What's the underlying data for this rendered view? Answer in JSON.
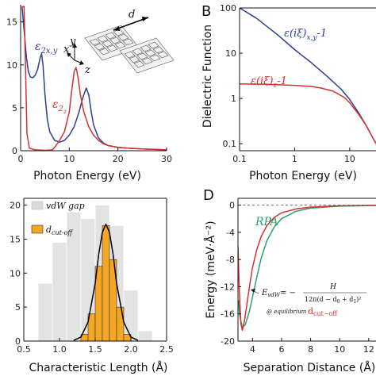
{
  "chart_data": [
    {
      "id": "A",
      "type": "line",
      "panel_label": "",
      "xlabel": "Photon Energy (eV)",
      "ylabel": "",
      "xlim": [
        0,
        30
      ],
      "ylim": [
        0,
        17
      ],
      "x_ticks": [
        0,
        10,
        20,
        30
      ],
      "y_ticks": [
        0,
        5,
        10,
        15
      ],
      "series": [
        {
          "name": "ε2x,y",
          "color": "#2e3f8f",
          "x": [
            0.3,
            0.8,
            1.2,
            1.6,
            2.0,
            2.5,
            3.0,
            3.5,
            4.0,
            4.3,
            4.6,
            5.0,
            5.5,
            6.0,
            7.0,
            8.0,
            9.0,
            10.0,
            11.0,
            12.0,
            12.8,
            13.5,
            14.0,
            14.5,
            15.0,
            16.0,
            17.0,
            18.0,
            20.0,
            22.0,
            25.0,
            28.0,
            30.0
          ],
          "y": [
            16.8,
            13.5,
            10.8,
            9.2,
            8.6,
            8.5,
            8.8,
            9.5,
            10.8,
            11.3,
            10.0,
            6.5,
            3.6,
            2.2,
            1.2,
            1.0,
            1.2,
            1.8,
            2.8,
            4.5,
            6.2,
            7.3,
            6.5,
            4.6,
            3.0,
            1.5,
            0.9,
            0.6,
            0.4,
            0.3,
            0.2,
            0.15,
            0.1
          ]
        },
        {
          "name": "ε2z",
          "color": "#d63030",
          "x": [
            0.3,
            0.7,
            1.0,
            1.3,
            1.8,
            3.0,
            5.0,
            6.5,
            7.0,
            7.5,
            8.0,
            9.0,
            10.0,
            10.5,
            11.0,
            11.4,
            11.8,
            12.3,
            13.0,
            14.0,
            15.0,
            16.0,
            17.0,
            18.0,
            20.0,
            22.0,
            25.0,
            28.0,
            30.0
          ],
          "y": [
            16.8,
            16.8,
            10.0,
            2.0,
            0.3,
            0.1,
            0.05,
            0.1,
            0.4,
            0.8,
            1.2,
            2.2,
            4.5,
            7.0,
            9.2,
            9.7,
            8.5,
            6.5,
            4.5,
            2.8,
            1.8,
            1.2,
            0.8,
            0.6,
            0.4,
            0.3,
            0.2,
            0.15,
            0.1
          ]
        }
      ]
    },
    {
      "id": "B",
      "type": "line",
      "panel_label": "B",
      "xlabel": "Photon Energy (eV)",
      "ylabel": "Dielectric Function",
      "xscale": "log",
      "yscale": "log",
      "xlim": [
        0.1,
        30
      ],
      "ylim": [
        0.07,
        100
      ],
      "x_ticks": [
        0.1,
        1,
        10
      ],
      "y_ticks": [
        0.1,
        1,
        10,
        100
      ],
      "series": [
        {
          "name": "ε(iξ)x,y-1",
          "color": "#2e3f8f",
          "x": [
            0.1,
            0.2,
            0.5,
            1,
            2,
            4,
            7,
            10,
            15,
            20,
            30
          ],
          "y": [
            100,
            60,
            25,
            12,
            6.2,
            3.0,
            1.6,
            0.95,
            0.45,
            0.25,
            0.1
          ]
        },
        {
          "name": "ε(iξ)z-1",
          "color": "#d63030",
          "x": [
            0.1,
            0.3,
            1,
            2,
            3,
            5,
            8,
            10,
            15,
            20,
            30
          ],
          "y": [
            2.1,
            2.05,
            1.95,
            1.85,
            1.7,
            1.45,
            1.05,
            0.8,
            0.42,
            0.25,
            0.1
          ]
        }
      ]
    },
    {
      "id": "C",
      "type": "bar",
      "panel_label": "",
      "xlabel": "Characteristic Length (Å)",
      "ylabel": "",
      "xlim": [
        0.5,
        2.5
      ],
      "ylim": [
        0,
        21
      ],
      "x_ticks": [
        0.5,
        1.0,
        1.5,
        2.0,
        2.5
      ],
      "y_ticks": [
        0,
        5,
        10,
        15,
        20
      ],
      "series": [
        {
          "name": "vdW gap",
          "color": "#d9d9d9",
          "bin_width": 0.2,
          "x": [
            0.8,
            1.0,
            1.2,
            1.4,
            1.6,
            1.8,
            2.0,
            2.2
          ],
          "y": [
            8.5,
            14.5,
            19.0,
            18.0,
            20.0,
            17.0,
            7.5,
            1.5
          ]
        },
        {
          "name": "dcut-off",
          "color": "#f5a623",
          "bin_width": 0.1,
          "x": [
            1.35,
            1.45,
            1.55,
            1.65,
            1.75,
            1.85,
            1.95
          ],
          "y": [
            1.0,
            4.0,
            11.0,
            17.0,
            12.0,
            5.0,
            1.0
          ]
        },
        {
          "name": "",
          "type": "line",
          "color": "#000000",
          "x": [
            1.2,
            1.3,
            1.4,
            1.5,
            1.55,
            1.6,
            1.65,
            1.7,
            1.75,
            1.8,
            1.9,
            2.0,
            2.1
          ],
          "y": [
            0.1,
            0.6,
            2.8,
            8.5,
            12.8,
            16.0,
            17.2,
            16.0,
            12.8,
            8.5,
            2.8,
            0.6,
            0.1
          ]
        }
      ]
    },
    {
      "id": "D",
      "type": "line",
      "panel_label": "D",
      "xlabel": "Separation Distance (Å)",
      "ylabel": "Energy (meV·Å⁻²)",
      "xlim": [
        3,
        12.5
      ],
      "ylim": [
        -20,
        1
      ],
      "x_ticks": [
        4,
        6,
        8,
        10,
        12
      ],
      "y_ticks": [
        0,
        -4,
        -8,
        -12,
        -16,
        -20
      ],
      "series": [
        {
          "name": "RPA",
          "color": "#2aa36a",
          "x": [
            3.05,
            3.1,
            3.3,
            3.5,
            3.8,
            4.2,
            4.6,
            5.0,
            5.5,
            6.0,
            7.0,
            8.0,
            10.0,
            12.5
          ],
          "y": [
            -14.0,
            -16.0,
            -18.0,
            -17.6,
            -15.5,
            -11.5,
            -7.8,
            -5.2,
            -3.2,
            -2.0,
            -0.9,
            -0.45,
            -0.15,
            -0.05
          ]
        },
        {
          "name": "",
          "color": "#d63030",
          "x": [
            3.0,
            3.1,
            3.2,
            3.3,
            3.45,
            3.6,
            3.8,
            4.0,
            4.3,
            4.6,
            5.0,
            5.5,
            6.0,
            7.0,
            8.0,
            10.0,
            12.5
          ],
          "y": [
            -6.0,
            -13.0,
            -17.5,
            -18.4,
            -17.0,
            -14.8,
            -11.8,
            -9.2,
            -6.5,
            -4.6,
            -3.0,
            -1.8,
            -1.15,
            -0.55,
            -0.3,
            -0.1,
            -0.04
          ]
        }
      ]
    }
  ],
  "labels": {
    "a_eps2xy_base": "ε",
    "a_eps2xy_sub": "2x,y",
    "a_eps2z_base": "ε",
    "a_eps2z_sub": "2",
    "a_eps2z_subsub": "z",
    "a_ax_y": "y",
    "a_ax_x": "x",
    "a_ax_z": "z",
    "a_d": "d",
    "b_xy": "ε(iξ)",
    "b_xy_sub": "x,y",
    "b_xy_tail": "-1",
    "b_z": "ε(iξ)",
    "b_z_sub": "z",
    "b_z_tail": "-1",
    "c_leg1": "vdW gap",
    "c_leg2_base": "d",
    "c_leg2_sub": "cut-off",
    "d_rpa": "RPA",
    "d_e": "E",
    "d_e_sub": "vdW",
    "d_eq": "= −",
    "d_num": "H",
    "d_den": "12π(d − d",
    "d_den_s0": "0",
    "d_den_mid": " + d",
    "d_den_s1": "1",
    "d_den_tail": ")²",
    "d_equil": "@ equilibrium :",
    "d_cut": "d",
    "d_cut_sub": "cut−off"
  },
  "colors": {
    "blue": "#2e3f8f",
    "red": "#d63030",
    "green": "#2aa36a",
    "orange": "#f5a623",
    "gray": "#d9d9d9"
  }
}
